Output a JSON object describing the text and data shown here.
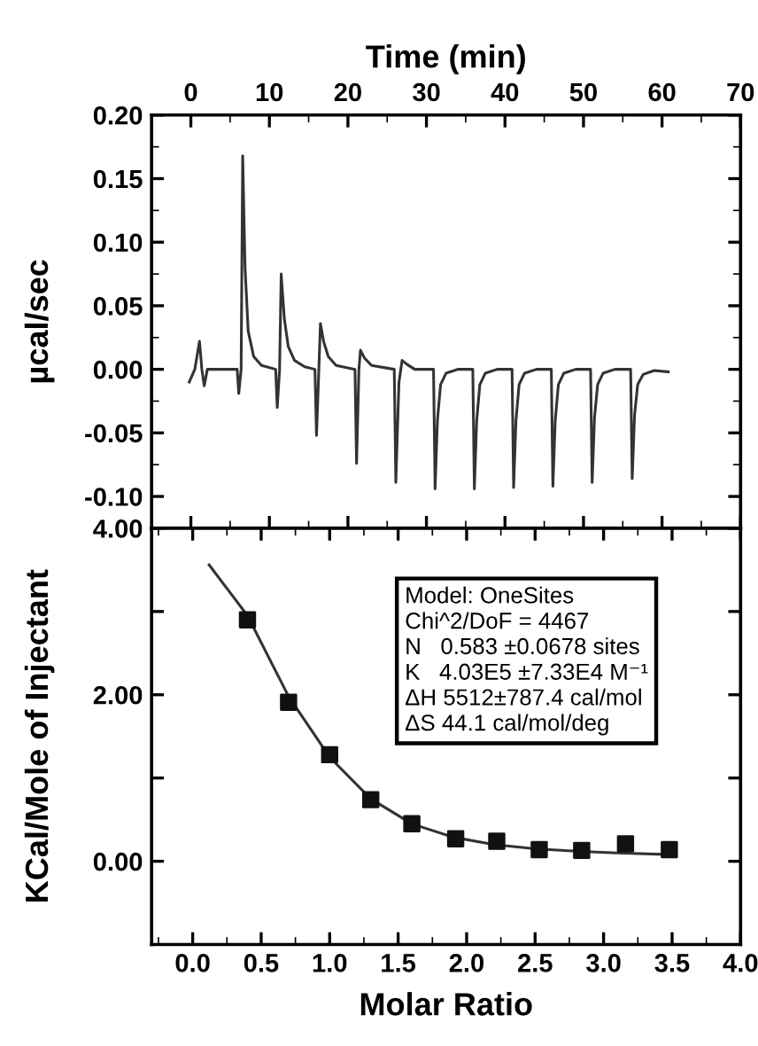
{
  "chart_data": [
    {
      "type": "line",
      "xlabel": "Time (min)",
      "ylabel": "µcal/sec",
      "xlim": [
        -5,
        70
      ],
      "xticks": [
        0,
        10,
        20,
        30,
        40,
        50,
        60,
        70
      ],
      "ylim": [
        -0.125,
        0.2
      ],
      "yticks": [
        {
          "value": 0.2,
          "label": "0.20"
        },
        {
          "value": 0.15,
          "label": "0.15"
        },
        {
          "value": 0.1,
          "label": "0.10"
        },
        {
          "value": 0.05,
          "label": "0.05"
        },
        {
          "value": 0.0,
          "label": "0.00"
        },
        {
          "value": -0.05,
          "label": "-0.05"
        },
        {
          "value": -0.1,
          "label": "-0.10"
        }
      ],
      "grid": false,
      "series": [
        {
          "color": "#333333",
          "x": [
            -0.2,
            0.5,
            1.1,
            1.4,
            1.7,
            2.1,
            3,
            5.9,
            6.1,
            6.4,
            6.6,
            6.9,
            7.3,
            8,
            9,
            10.8,
            11.0,
            11.3,
            11.5,
            11.9,
            12.4,
            13.2,
            14.5,
            15.8,
            16.0,
            16.3,
            16.5,
            16.9,
            17.5,
            18.5,
            20.9,
            21.1,
            21.4,
            21.6,
            22.1,
            23,
            25.9,
            26.1,
            26.5,
            26.9,
            27.5,
            28.5,
            30.9,
            31.1,
            31.4,
            31.8,
            32.5,
            34,
            35.9,
            36.1,
            36.4,
            36.8,
            37.5,
            39,
            40.9,
            41.1,
            41.4,
            41.8,
            42.5,
            44,
            45.9,
            46.1,
            46.4,
            46.8,
            47.5,
            49,
            50.9,
            51.1,
            51.4,
            51.8,
            52.5,
            54,
            56.0,
            56.2,
            56.5,
            56.9,
            57.6,
            59,
            60.8
          ],
          "values": [
            -0.01,
            0.0,
            0.022,
            0.0,
            -0.013,
            0.0,
            0.0,
            0.0,
            -0.019,
            0.0,
            0.168,
            0.08,
            0.03,
            0.01,
            0.003,
            0.0,
            -0.03,
            0.0,
            0.075,
            0.04,
            0.018,
            0.007,
            0.002,
            0.0,
            -0.052,
            0.0,
            0.036,
            0.022,
            0.01,
            0.003,
            0.0,
            -0.074,
            0.0,
            0.015,
            0.009,
            0.003,
            0.0,
            -0.089,
            -0.01,
            0.007,
            0.004,
            0.0,
            0.0,
            -0.094,
            -0.04,
            -0.012,
            -0.003,
            0.0,
            0.0,
            -0.094,
            -0.04,
            -0.012,
            -0.003,
            0.0,
            0.0,
            -0.093,
            -0.04,
            -0.012,
            -0.003,
            0.0,
            0.0,
            -0.092,
            -0.04,
            -0.012,
            -0.003,
            0.0,
            0.0,
            -0.089,
            -0.038,
            -0.012,
            -0.003,
            0.0,
            0.0,
            -0.086,
            -0.036,
            -0.012,
            -0.004,
            -0.001,
            -0.002
          ]
        }
      ]
    },
    {
      "type": "scatter",
      "xlabel": "Molar Ratio",
      "ylabel": "KCal/Mole of Injectant",
      "xlim": [
        -0.3,
        4.0
      ],
      "xticks": [
        {
          "value": 0,
          "label": "0.0"
        },
        {
          "value": 0.5,
          "label": "0.5"
        },
        {
          "value": 1.0,
          "label": "1.0"
        },
        {
          "value": 1.5,
          "label": "1.5"
        },
        {
          "value": 2.0,
          "label": "2.0"
        },
        {
          "value": 2.5,
          "label": "2.5"
        },
        {
          "value": 3.0,
          "label": "3.0"
        },
        {
          "value": 3.5,
          "label": "3.5"
        },
        {
          "value": 4.0,
          "label": "4.0"
        }
      ],
      "ylim": [
        -1,
        4
      ],
      "yticks": [
        {
          "value": 4,
          "label": "4.00"
        },
        {
          "value": 3,
          "label": null
        },
        {
          "value": 2,
          "label": "2.00"
        },
        {
          "value": 1,
          "label": null
        },
        {
          "value": 0,
          "label": "0.00"
        }
      ],
      "grid": false,
      "annotations": [
        "Model: OneSites\nChi^2/DoF = 4467\nN   0.583 ±0.0678 sites\nK   4.03E5 ±7.33E4 M⁻¹\nΔH 5512±787.4 cal/mol\nΔS 44.1 cal/mol/deg"
      ],
      "series": [
        {
          "type": "scatter",
          "marker": "square",
          "color": "#111111",
          "x": [
            0.4,
            0.7,
            1.0,
            1.3,
            1.6,
            1.92,
            2.22,
            2.53,
            2.84,
            3.16,
            3.48
          ],
          "values": [
            2.9,
            1.91,
            1.28,
            0.74,
            0.45,
            0.27,
            0.24,
            0.14,
            0.13,
            0.21,
            0.14
          ]
        },
        {
          "type": "line",
          "marker": "none",
          "color": "#333333",
          "x": [
            0.12,
            0.4,
            0.7,
            1.0,
            1.3,
            1.6,
            1.9,
            2.2,
            2.5,
            2.8,
            3.1,
            3.5
          ],
          "values": [
            3.56,
            2.95,
            1.98,
            1.25,
            0.75,
            0.45,
            0.29,
            0.2,
            0.15,
            0.12,
            0.1,
            0.08
          ]
        }
      ]
    }
  ]
}
